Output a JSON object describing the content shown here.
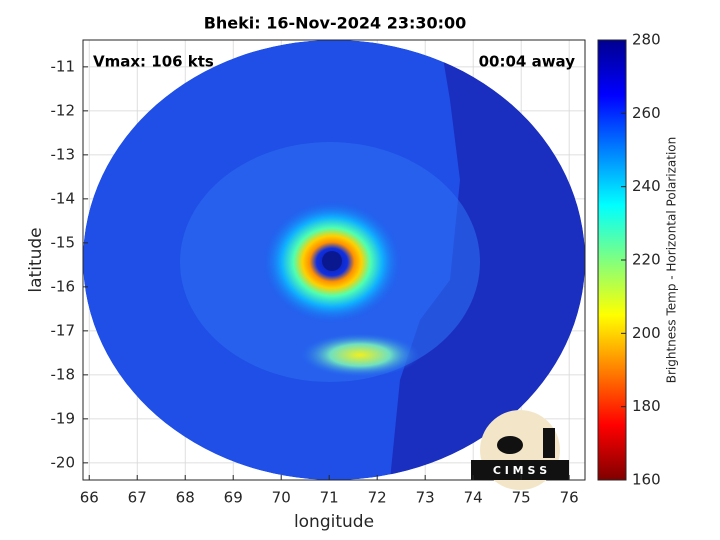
{
  "chart_data": {
    "type": "map",
    "title": "Bheki: 16-Nov-2024 23:30:00",
    "annotations": [
      "Vmax: 106 kts",
      "00:04 away"
    ],
    "xlabel": "longitude",
    "ylabel": "latitude",
    "xlim": [
      65.87,
      76.33
    ],
    "ylim": [
      -20.39,
      -10.39
    ],
    "xticks": [
      66,
      67,
      68,
      69,
      70,
      71,
      72,
      73,
      74,
      75,
      76
    ],
    "yticks": [
      -11,
      -12,
      -13,
      -14,
      -15,
      -16,
      -17,
      -18,
      -19,
      -20
    ],
    "grid": true,
    "colorbar": {
      "label": "Brightness Temp - Horizontal Polarization",
      "lim": [
        160,
        280
      ],
      "ticks": [
        160,
        180,
        200,
        220,
        240,
        260,
        280
      ],
      "colormap": [
        "#800000",
        "#ff0000",
        "#ff8000",
        "#ffff00",
        "#80ff80",
        "#00ffff",
        "#0080ff",
        "#0000ff",
        "#00008f"
      ]
    },
    "logo": "C I M S S"
  }
}
